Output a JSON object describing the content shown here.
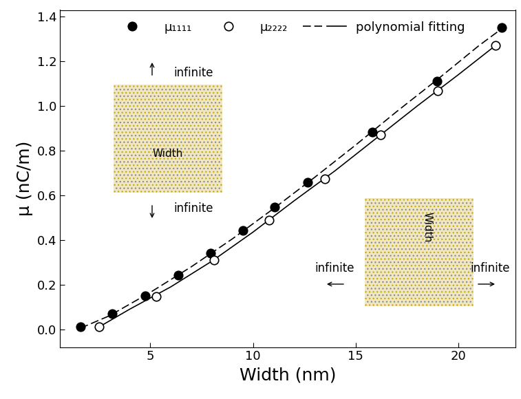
{
  "chart_data": {
    "type": "scatter",
    "x_label": "Width (nm)",
    "y_label": "μ (nC/m)",
    "xlim": [
      0.6,
      22.8
    ],
    "ylim": [
      -0.08,
      1.43
    ],
    "xticks": [
      5,
      10,
      15,
      20
    ],
    "yticks": [
      {
        "value": 0,
        "label": "0.0"
      },
      {
        "value": 0.2,
        "label": "0.2"
      },
      {
        "value": 0.4,
        "label": "0.4"
      },
      {
        "value": 0.6,
        "label": "0.6"
      },
      {
        "value": 0.8,
        "label": "0.8"
      },
      {
        "value": 1.0,
        "label": "1.0"
      },
      {
        "value": 1.2,
        "label": "1.2"
      },
      {
        "value": 1.4,
        "label": "1.4"
      }
    ],
    "legend": "upper center",
    "grid": false,
    "series": [
      {
        "name": "μ₁₁₁₁",
        "type": "scatter",
        "marker": "circle",
        "color": "#000000",
        "x": [
          1.6,
          3.15,
          4.75,
          6.35,
          7.95,
          9.5,
          11.05,
          12.65,
          15.8,
          18.95,
          22.1
        ],
        "values": [
          0.01,
          0.07,
          0.15,
          0.242,
          0.34,
          0.443,
          0.548,
          0.657,
          0.882,
          1.112,
          1.35
        ]
      },
      {
        "name": "μ₂₂₂₂",
        "type": "scatter",
        "marker": "open_circle",
        "color": "#000000",
        "x": [
          2.5,
          5.3,
          8.1,
          10.8,
          13.5,
          16.2,
          19.0,
          21.8
        ],
        "values": [
          0.012,
          0.148,
          0.31,
          0.49,
          0.675,
          0.87,
          1.068,
          1.27
        ]
      },
      {
        "name": "polynomial fitting",
        "type": "line",
        "line_style": "dashed",
        "color": "#000000",
        "x": [
          1.6,
          3,
          5,
          7,
          9,
          11,
          13,
          15,
          17,
          19,
          21,
          22.1
        ],
        "values": [
          0.005,
          0.06,
          0.165,
          0.28,
          0.405,
          0.54,
          0.68,
          0.825,
          0.975,
          1.12,
          1.27,
          1.345
        ]
      },
      {
        "name": "polynomial fitting",
        "type": "line",
        "line_style": "solid",
        "color": "#000000",
        "x": [
          2.5,
          4,
          6,
          8,
          10,
          12,
          14,
          16,
          18,
          20,
          21.8
        ],
        "values": [
          0.01,
          0.09,
          0.19,
          0.305,
          0.435,
          0.575,
          0.71,
          0.855,
          1.0,
          1.14,
          1.27
        ]
      }
    ],
    "annotations": [
      "infinite",
      "infinite",
      "Width",
      "infinite",
      "infinite",
      "Width"
    ]
  }
}
